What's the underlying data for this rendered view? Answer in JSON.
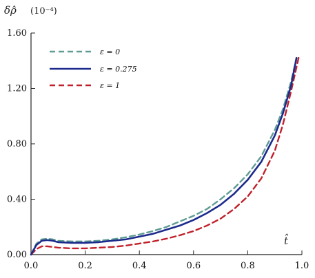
{
  "chart_data": {
    "type": "line",
    "ylabel": "δρ̂",
    "ylabel_unit": "(10⁻⁴)",
    "xlabel": "t̂",
    "xlim": [
      0.0,
      1.0
    ],
    "ylim": [
      0.0,
      1.6
    ],
    "xticks": [
      "0.0",
      "0.2",
      "0.4",
      "0.6",
      "0.8",
      "1.0"
    ],
    "yticks": [
      "0.00",
      "0.40",
      "0.80",
      "1.20",
      "1.60"
    ],
    "grid": false,
    "legend_position": "top-left",
    "series": [
      {
        "name": "ε = 0",
        "color": "#5f9c94",
        "dash": "dashed",
        "x": [
          0,
          0.02,
          0.04,
          0.06,
          0.08,
          0.1,
          0.15,
          0.2,
          0.25,
          0.3,
          0.35,
          0.4,
          0.45,
          0.5,
          0.55,
          0.6,
          0.65,
          0.7,
          0.75,
          0.8,
          0.85,
          0.9,
          0.93,
          0.96,
          0.98
        ],
        "y": [
          0,
          0.08,
          0.11,
          0.115,
          0.11,
          0.1,
          0.095,
          0.095,
          0.1,
          0.11,
          0.125,
          0.145,
          0.17,
          0.2,
          0.24,
          0.28,
          0.33,
          0.4,
          0.48,
          0.58,
          0.71,
          0.9,
          1.05,
          1.25,
          1.42
        ]
      },
      {
        "name": "ε = 0.275",
        "color": "#1b2a8c",
        "dash": "solid",
        "x": [
          0,
          0.02,
          0.04,
          0.06,
          0.08,
          0.1,
          0.15,
          0.2,
          0.25,
          0.3,
          0.35,
          0.4,
          0.45,
          0.5,
          0.55,
          0.6,
          0.65,
          0.7,
          0.75,
          0.8,
          0.85,
          0.9,
          0.93,
          0.96,
          0.98
        ],
        "y": [
          0,
          0.07,
          0.1,
          0.105,
          0.1,
          0.09,
          0.085,
          0.085,
          0.09,
          0.1,
          0.11,
          0.13,
          0.15,
          0.18,
          0.21,
          0.25,
          0.3,
          0.36,
          0.44,
          0.54,
          0.67,
          0.86,
          1.02,
          1.22,
          1.42
        ]
      },
      {
        "name": "ε = 1",
        "color": "#c0202a",
        "dash": "dashed",
        "x": [
          0,
          0.02,
          0.04,
          0.06,
          0.08,
          0.1,
          0.15,
          0.2,
          0.25,
          0.3,
          0.35,
          0.4,
          0.45,
          0.5,
          0.55,
          0.6,
          0.65,
          0.7,
          0.75,
          0.8,
          0.85,
          0.9,
          0.93,
          0.96,
          0.99
        ],
        "y": [
          0,
          0.04,
          0.06,
          0.06,
          0.055,
          0.05,
          0.045,
          0.045,
          0.05,
          0.055,
          0.065,
          0.08,
          0.095,
          0.115,
          0.14,
          0.17,
          0.21,
          0.26,
          0.33,
          0.42,
          0.55,
          0.75,
          0.94,
          1.18,
          1.44
        ]
      }
    ]
  }
}
